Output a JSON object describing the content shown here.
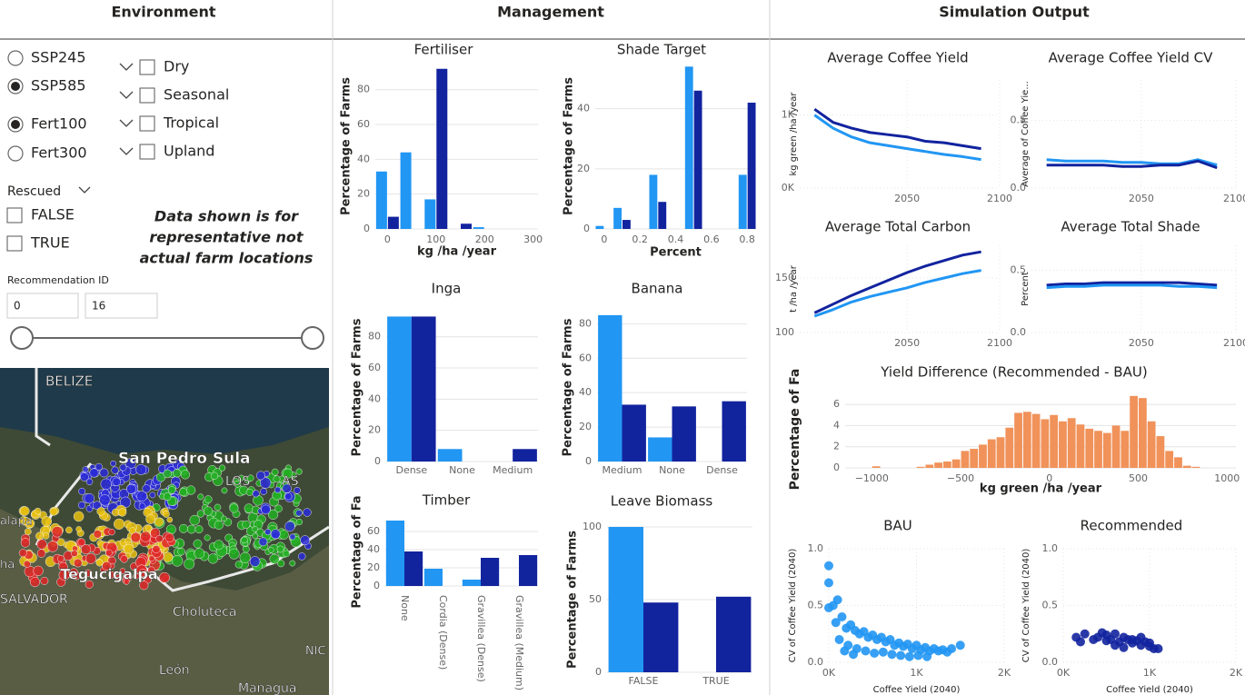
{
  "headers": [
    "Environment",
    "Management",
    "Simulation Output"
  ],
  "environment": {
    "scenarios": [
      {
        "label": "SSP245",
        "selected": false
      },
      {
        "label": "SSP585",
        "selected": true
      }
    ],
    "fertiliser": [
      {
        "label": "Fert100",
        "selected": true
      },
      {
        "label": "Fert300",
        "selected": false
      }
    ],
    "zones": [
      {
        "label": "Dry",
        "checked": false
      },
      {
        "label": "Seasonal",
        "checked": false
      },
      {
        "label": "Tropical",
        "checked": false
      },
      {
        "label": "Upland",
        "checked": false
      }
    ],
    "rescued": {
      "label": "Rescued",
      "options": [
        {
          "label": "FALSE",
          "checked": false
        },
        {
          "label": "TRUE",
          "checked": false
        }
      ]
    },
    "note": [
      "Data shown is for",
      "representative not",
      "actual farm locations"
    ],
    "recommendation": {
      "label": "Recommendation ID",
      "min": 0,
      "max": 16
    }
  },
  "map": {
    "labels": [
      "BELIZE",
      "San Pedro Sula",
      "Tegucigalpa",
      "Choluteca",
      "SALVADOR",
      "León",
      "Managua",
      "alapa",
      "ha",
      "NIC",
      "LOS",
      "AS"
    ]
  },
  "chart_data": [
    {
      "type": "bar",
      "title": "Fertiliser",
      "x_label": "kg /ha /year",
      "y_label": "Percentage of Farms",
      "x": [
        0,
        50,
        100,
        150,
        200
      ],
      "series": [
        {
          "color": "#2196f3",
          "values": [
            33,
            44,
            17,
            0,
            1
          ]
        },
        {
          "color": "#12239e",
          "values": [
            7,
            0,
            92,
            3,
            0
          ]
        }
      ],
      "xlim": [
        -25,
        310
      ],
      "xticks": [
        0,
        100,
        200,
        300
      ],
      "ylim": [
        0,
        95
      ],
      "yticks": [
        0,
        20,
        40,
        60,
        80
      ],
      "grid": true
    },
    {
      "type": "bar",
      "title": "Shade Target",
      "x_label": "Percent",
      "y_label": "Percentage of Farms",
      "x": [
        0,
        0.1,
        0.3,
        0.5,
        0.8
      ],
      "series": [
        {
          "color": "#2196f3",
          "values": [
            1,
            7,
            18,
            54,
            18
          ]
        },
        {
          "color": "#12239e",
          "values": [
            0,
            3,
            9,
            46,
            42
          ]
        }
      ],
      "xlim": [
        -0.05,
        0.85
      ],
      "xticks": [
        0,
        0.2,
        0.4,
        0.6,
        0.8
      ],
      "ylim": [
        0,
        55
      ],
      "yticks": [
        0,
        20,
        40
      ],
      "grid": true
    },
    {
      "type": "bar",
      "title": "Inga",
      "y_label": "Percentage of Farms",
      "categories": [
        "Dense",
        "None",
        "Medium"
      ],
      "series": [
        {
          "color": "#2196f3",
          "values": [
            93,
            8,
            0
          ]
        },
        {
          "color": "#12239e",
          "values": [
            93,
            0,
            8
          ]
        }
      ],
      "ylim": [
        0,
        95
      ],
      "yticks": [
        0,
        20,
        40,
        60,
        80
      ],
      "grid": true
    },
    {
      "type": "bar",
      "title": "Banana",
      "y_label": "Percentage of Farms",
      "categories": [
        "Medium",
        "None",
        "Dense"
      ],
      "series": [
        {
          "color": "#2196f3",
          "values": [
            85,
            14,
            0
          ]
        },
        {
          "color": "#12239e",
          "values": [
            33,
            32,
            35
          ]
        }
      ],
      "ylim": [
        0,
        86
      ],
      "yticks": [
        0,
        20,
        40,
        60,
        80
      ],
      "grid": true
    },
    {
      "type": "bar",
      "title": "Timber",
      "y_label": "Percentage of Fa",
      "categories": [
        "None",
        "Cordia (Dense)",
        "Gravillea (Dense)",
        "Gravillea (Medium)"
      ],
      "series": [
        {
          "color": "#2196f3",
          "values": [
            72,
            19,
            7,
            0
          ]
        },
        {
          "color": "#12239e",
          "values": [
            38,
            0,
            31,
            34
          ]
        }
      ],
      "ylim": [
        0,
        75
      ],
      "yticks": [
        0,
        20,
        40,
        60
      ],
      "grid": true
    },
    {
      "type": "bar",
      "title": "Leave Biomass",
      "y_label": "Percentage of Farms",
      "categories": [
        "FALSE",
        "TRUE"
      ],
      "series": [
        {
          "color": "#2196f3",
          "values": [
            100,
            0
          ]
        },
        {
          "color": "#12239e",
          "values": [
            48,
            52
          ]
        }
      ],
      "ylim": [
        0,
        100
      ],
      "yticks": [
        0,
        50,
        100
      ],
      "grid": true
    },
    {
      "type": "line",
      "title": "Average Coffee Yield",
      "y_label": "kg green /ha /year",
      "x": [
        2000,
        2010,
        2020,
        2030,
        2040,
        2050,
        2060,
        2070,
        2080,
        2090
      ],
      "series": [
        {
          "color": "#12239e",
          "values": [
            1080,
            900,
            820,
            760,
            730,
            700,
            640,
            620,
            580,
            540
          ]
        },
        {
          "color": "#2196f3",
          "values": [
            1000,
            820,
            700,
            620,
            580,
            540,
            500,
            460,
            430,
            390
          ]
        }
      ],
      "xlim": [
        1992,
        2100
      ],
      "xticks": [
        2050,
        2100
      ],
      "ylim": [
        0,
        1480
      ],
      "yticks": [
        {
          "value": 0,
          "label": "0K"
        },
        {
          "value": 1000,
          "label": "1K"
        }
      ],
      "grid": true
    },
    {
      "type": "line",
      "title": "Average Coffee Yield CV",
      "y_label": "Average of Coffee Yie...",
      "x": [
        2000,
        2010,
        2020,
        2030,
        2040,
        2050,
        2060,
        2070,
        2080,
        2090
      ],
      "series": [
        {
          "color": "#2196f3",
          "values": [
            0.21,
            0.2,
            0.2,
            0.2,
            0.19,
            0.19,
            0.18,
            0.18,
            0.21,
            0.17
          ]
        },
        {
          "color": "#12239e",
          "values": [
            0.17,
            0.17,
            0.17,
            0.17,
            0.16,
            0.16,
            0.17,
            0.17,
            0.2,
            0.15
          ]
        }
      ],
      "xlim": [
        1992,
        2100
      ],
      "xticks": [
        2050,
        2100
      ],
      "ylim": [
        0,
        0.8
      ],
      "yticks": [
        {
          "value": 0,
          "label": "0.0"
        },
        0.5
      ],
      "grid": true
    },
    {
      "type": "line",
      "title": "Average Total Carbon",
      "y_label": "t /ha /year",
      "x": [
        2000,
        2010,
        2020,
        2030,
        2040,
        2050,
        2060,
        2070,
        2080,
        2090
      ],
      "series": [
        {
          "color": "#12239e",
          "values": [
            118,
            126,
            134,
            141,
            148,
            155,
            161,
            166,
            171,
            174
          ]
        },
        {
          "color": "#2196f3",
          "values": [
            115,
            121,
            128,
            133,
            137,
            141,
            146,
            150,
            154,
            157
          ]
        }
      ],
      "xlim": [
        1992,
        2100
      ],
      "xticks": [
        2050,
        2100
      ],
      "ylim": [
        100,
        180
      ],
      "yticks": [
        100,
        150
      ],
      "grid": true
    },
    {
      "type": "line",
      "title": "Average Total Shade",
      "y_label": "Percent",
      "x": [
        2000,
        2010,
        2020,
        2030,
        2040,
        2050,
        2060,
        2070,
        2080,
        2090
      ],
      "series": [
        {
          "color": "#12239e",
          "values": [
            0.38,
            0.39,
            0.39,
            0.4,
            0.4,
            0.4,
            0.4,
            0.4,
            0.39,
            0.38
          ]
        },
        {
          "color": "#2196f3",
          "values": [
            0.36,
            0.37,
            0.37,
            0.38,
            0.38,
            0.38,
            0.38,
            0.37,
            0.37,
            0.36
          ]
        }
      ],
      "xlim": [
        1992,
        2100
      ],
      "xticks": [
        2050,
        2100
      ],
      "ylim": [
        0,
        0.7
      ],
      "yticks": [
        {
          "value": 0,
          "label": "0.0"
        },
        0.5
      ],
      "grid": true
    },
    {
      "type": "histogram",
      "title": "Yield Difference (Recommended - BAU)",
      "x_label": "kg green /ha /year",
      "y_label": "Percentage of Fa",
      "bins": [
        -1000,
        -950,
        -900,
        -850,
        -800,
        -750,
        -700,
        -650,
        -600,
        -550,
        -500,
        -450,
        -400,
        -350,
        -300,
        -250,
        -200,
        -150,
        -100,
        -50,
        0,
        50,
        100,
        150,
        200,
        250,
        300,
        350,
        400,
        450,
        500,
        550,
        600,
        650,
        700,
        750,
        800,
        850,
        900
      ],
      "values": [
        0.15,
        0,
        0,
        0,
        0,
        0.1,
        0.3,
        0.5,
        0.6,
        0.8,
        1.6,
        1.8,
        2.2,
        2.7,
        2.9,
        3.8,
        5.2,
        5.3,
        5.1,
        4.6,
        5.0,
        4.4,
        4.7,
        4.1,
        3.7,
        3.5,
        3.3,
        4.0,
        3.5,
        6.8,
        6.6,
        4.4,
        3.0,
        1.6,
        1.0,
        0.2,
        0.1,
        0
      ],
      "color": "#f0925a",
      "xlim": [
        -1150,
        1050
      ],
      "xticks": [
        {
          "value": -1000,
          "label": "−1000"
        },
        {
          "value": -500,
          "label": "−500"
        },
        0,
        500,
        1000
      ],
      "ylim": [
        0,
        7.3
      ],
      "yticks": [
        0,
        2,
        4,
        6
      ],
      "grid": true
    },
    {
      "type": "scatter",
      "title": "BAU",
      "x_label": "Coffee Yield (2040)",
      "y_label": "CV of Coffee Yield (2040)",
      "series": [
        {
          "color": "#2196f3",
          "x": [
            0,
            0,
            0,
            50,
            100,
            80,
            150,
            200,
            250,
            300,
            350,
            400,
            450,
            500,
            550,
            600,
            650,
            700,
            750,
            800,
            850,
            900,
            950,
            1000,
            1050,
            1100,
            1150,
            1200,
            1250,
            1300,
            1350,
            1400,
            1500,
            120,
            220,
            320,
            420,
            520,
            620,
            720,
            820,
            920,
            1020,
            1120,
            180,
            280
          ],
          "values": [
            0.85,
            0.7,
            0.48,
            0.5,
            0.55,
            0.35,
            0.4,
            0.3,
            0.33,
            0.28,
            0.25,
            0.27,
            0.22,
            0.24,
            0.2,
            0.22,
            0.18,
            0.2,
            0.15,
            0.17,
            0.14,
            0.16,
            0.12,
            0.15,
            0.11,
            0.13,
            0.1,
            0.12,
            0.1,
            0.11,
            0.09,
            0.12,
            0.15,
            0.2,
            0.15,
            0.12,
            0.1,
            0.08,
            0.09,
            0.07,
            0.06,
            0.05,
            0.06,
            0.05,
            0.1,
            0.07
          ]
        }
      ],
      "xlim": [
        0,
        2000
      ],
      "xticks": [
        {
          "value": 0,
          "label": "0K"
        },
        {
          "value": 1000,
          "label": "1K"
        },
        {
          "value": 2000,
          "label": "2K"
        }
      ],
      "ylim": [
        0,
        1
      ],
      "yticks": [
        {
          "value": 0,
          "label": "0.0"
        },
        0.5,
        {
          "value": 1,
          "label": "1.0"
        }
      ],
      "grid": true
    },
    {
      "type": "scatter",
      "title": "Recommended",
      "x_label": "Coffee Yield (2040)",
      "y_label": "CV of Coffee Yield (2040)",
      "series": [
        {
          "color": "#12239e",
          "x": [
            150,
            200,
            250,
            350,
            400,
            450,
            500,
            550,
            600,
            650,
            700,
            750,
            800,
            850,
            900,
            950,
            1000,
            1050,
            1100,
            600,
            700,
            800,
            900,
            1000,
            500
          ],
          "values": [
            0.22,
            0.18,
            0.25,
            0.2,
            0.22,
            0.26,
            0.24,
            0.2,
            0.25,
            0.18,
            0.22,
            0.2,
            0.17,
            0.19,
            0.15,
            0.18,
            0.14,
            0.12,
            0.12,
            0.15,
            0.13,
            0.2,
            0.22,
            0.17,
            0.19
          ]
        }
      ],
      "xlim": [
        0,
        2000
      ],
      "xticks": [
        {
          "value": 0,
          "label": "0K"
        },
        {
          "value": 1000,
          "label": "1K"
        },
        {
          "value": 2000,
          "label": "2K"
        }
      ],
      "ylim": [
        0,
        1
      ],
      "yticks": [
        {
          "value": 0,
          "label": "0.0"
        },
        0.5,
        {
          "value": 1,
          "label": "1.0"
        }
      ],
      "grid": true
    }
  ]
}
